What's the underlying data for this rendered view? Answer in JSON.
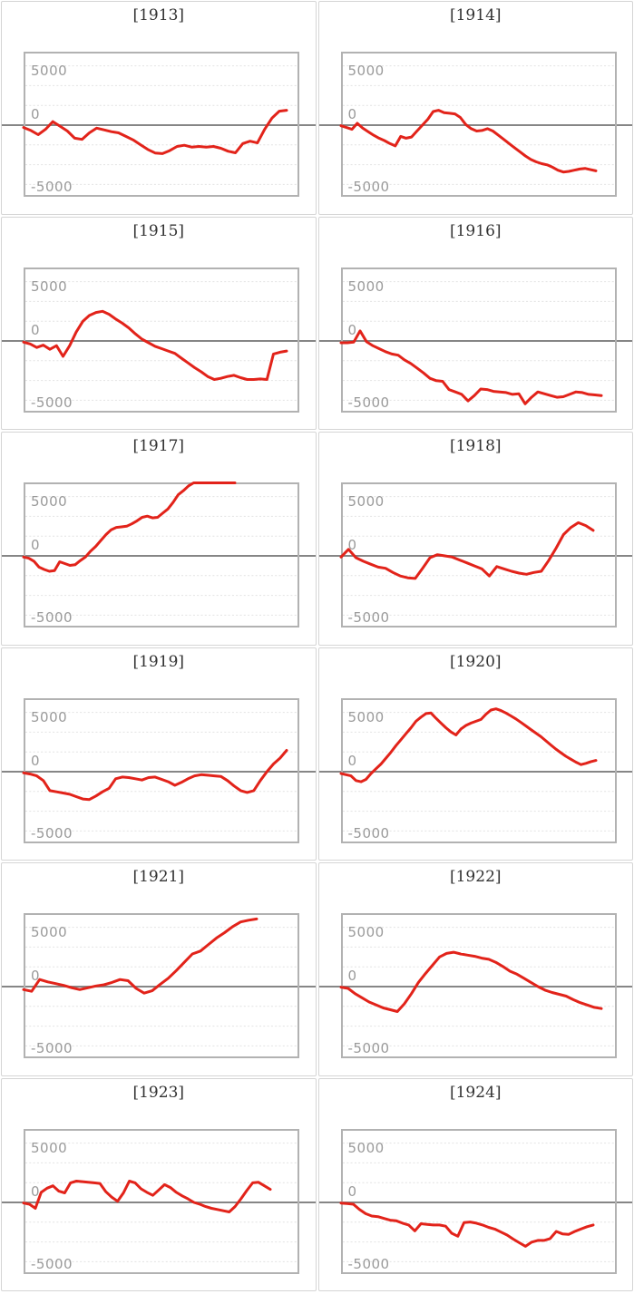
{
  "figure": {
    "description": "Small-multiple line charts per year, 2 columns x 6 rows",
    "background": "#ffffff"
  },
  "style": {
    "line_color": "#e2231a",
    "grid_color": "#e2e2e2",
    "zero_line_color": "#868686",
    "frame_color": "#b2b2b2",
    "tick_label_color": "#9a9a9a",
    "title_color": "#333333",
    "cell_border_color": "#d5d5d5"
  },
  "axis": {
    "tick_labels": [
      "5000",
      "0",
      "-5000"
    ],
    "tick_values": [
      5000,
      0,
      -5000
    ],
    "ylim": [
      -5900,
      6040
    ],
    "grid": "dashed-minor-thirds"
  },
  "chart_data": [
    {
      "type": "line",
      "title": "[1913]",
      "year": 1913,
      "x_end_frac": 0.96,
      "values": [
        -200,
        -450,
        -800,
        -350,
        300,
        -100,
        -500,
        -1100,
        -1200,
        -650,
        -250,
        -400,
        -550,
        -650,
        -950,
        -1250,
        -1650,
        -2050,
        -2350,
        -2400,
        -2150,
        -1800,
        -1700,
        -1850,
        -1800,
        -1850,
        -1800,
        -1950,
        -2200,
        -2330,
        -1550,
        -1350,
        -1500,
        -350,
        600,
        1180,
        1250
      ]
    },
    {
      "type": "line",
      "title": "[1914]",
      "year": 1914,
      "x_end_frac": 0.93,
      "values": [
        -50,
        -200,
        -350,
        150,
        -250,
        -550,
        -850,
        -1100,
        -1300,
        -1550,
        -1750,
        -950,
        -1100,
        -1000,
        -500,
        0,
        500,
        1150,
        1250,
        1050,
        1000,
        950,
        650,
        50,
        -300,
        -500,
        -450,
        -300,
        -500,
        -850,
        -1200,
        -1550,
        -1900,
        -2250,
        -2600,
        -2900,
        -3100,
        -3250,
        -3350,
        -3550,
        -3800,
        -3950,
        -3900,
        -3800,
        -3700,
        -3650,
        -3750,
        -3850
      ]
    },
    {
      "type": "line",
      "title": "[1915]",
      "year": 1915,
      "x_end_frac": 0.96,
      "values": [
        -100,
        -250,
        -550,
        -350,
        -700,
        -400,
        -1300,
        -400,
        750,
        1650,
        2150,
        2400,
        2500,
        2250,
        1850,
        1500,
        1100,
        600,
        150,
        -150,
        -450,
        -650,
        -850,
        -1050,
        -1450,
        -1850,
        -2250,
        -2600,
        -3000,
        -3250,
        -3150,
        -3000,
        -2900,
        -3100,
        -3250,
        -3250,
        -3200,
        -3250,
        -1100,
        -950,
        -850
      ]
    },
    {
      "type": "line",
      "title": "[1916]",
      "year": 1916,
      "x_end_frac": 0.95,
      "values": [
        -150,
        -150,
        -100,
        850,
        -50,
        -400,
        -650,
        -900,
        -1100,
        -1200,
        -1600,
        -1900,
        -2300,
        -2700,
        -3150,
        -3350,
        -3400,
        -4100,
        -4300,
        -4500,
        -5050,
        -4600,
        -4050,
        -4100,
        -4250,
        -4300,
        -4350,
        -4500,
        -4450,
        -5300,
        -4750,
        -4300,
        -4450,
        -4600,
        -4750,
        -4700,
        -4500,
        -4300,
        -4350,
        -4500,
        -4550,
        -4600
      ]
    },
    {
      "type": "line",
      "title": "[1917]",
      "year": 1917,
      "x_end_frac": 0.77,
      "clipped_at_top": true,
      "values": [
        -100,
        -200,
        -450,
        -950,
        -1150,
        -1300,
        -1250,
        -500,
        -650,
        -800,
        -750,
        -400,
        -100,
        400,
        800,
        1300,
        1800,
        2200,
        2400,
        2450,
        2500,
        2700,
        2950,
        3250,
        3350,
        3200,
        3250,
        3600,
        3950,
        4500,
        5150,
        5500,
        5900,
        6300,
        6500,
        6500,
        6500,
        6500,
        6500,
        6500,
        6500,
        6500
      ]
    },
    {
      "type": "line",
      "title": "[1918]",
      "year": 1918,
      "x_end_frac": 0.92,
      "values": [
        -100,
        550,
        -150,
        -450,
        -700,
        -950,
        -1050,
        -1400,
        -1700,
        -1850,
        -1900,
        -1050,
        -150,
        100,
        0,
        -100,
        -350,
        -600,
        -850,
        -1100,
        -1700,
        -900,
        -1100,
        -1300,
        -1450,
        -1550,
        -1400,
        -1300,
        -400,
        650,
        1800,
        2400,
        2800,
        2550,
        2150
      ]
    },
    {
      "type": "line",
      "title": "[1919]",
      "year": 1919,
      "x_end_frac": 0.96,
      "values": [
        -100,
        -200,
        -350,
        -750,
        -1600,
        -1700,
        -1800,
        -1900,
        -2100,
        -2300,
        -2350,
        -2050,
        -1700,
        -1400,
        -600,
        -450,
        -500,
        -600,
        -700,
        -500,
        -450,
        -650,
        -850,
        -1150,
        -900,
        -600,
        -350,
        -250,
        -300,
        -350,
        -400,
        -750,
        -1200,
        -1600,
        -1750,
        -1600,
        -750,
        0,
        650,
        1150,
        1800
      ]
    },
    {
      "type": "line",
      "title": "[1920]",
      "year": 1920,
      "x_end_frac": 0.93,
      "values": [
        -150,
        -250,
        -350,
        -750,
        -850,
        -650,
        -150,
        250,
        650,
        1150,
        1650,
        2200,
        2700,
        3200,
        3700,
        4250,
        4600,
        4900,
        4950,
        4500,
        4100,
        3700,
        3350,
        3100,
        3600,
        3900,
        4100,
        4250,
        4400,
        4850,
        5200,
        5300,
        5150,
        4950,
        4700,
        4450,
        4150,
        3850,
        3550,
        3250,
        2950,
        2600,
        2250,
        1900,
        1600,
        1300,
        1050,
        800,
        600,
        700,
        850,
        950
      ]
    },
    {
      "type": "line",
      "title": "[1921]",
      "year": 1921,
      "x_end_frac": 0.85,
      "values": [
        -250,
        -400,
        600,
        400,
        250,
        100,
        -100,
        -250,
        -100,
        50,
        150,
        350,
        600,
        500,
        -150,
        -550,
        -350,
        200,
        700,
        1350,
        2050,
        2750,
        3000,
        3550,
        4100,
        4550,
        5050,
        5450,
        5600,
        5700
      ]
    },
    {
      "type": "line",
      "title": "[1922]",
      "year": 1922,
      "x_end_frac": 0.95,
      "values": [
        -50,
        -150,
        -600,
        -950,
        -1300,
        -1550,
        -1800,
        -1950,
        -2100,
        -1450,
        -600,
        350,
        1100,
        1800,
        2500,
        2800,
        2900,
        2750,
        2650,
        2550,
        2400,
        2300,
        2050,
        1700,
        1300,
        1050,
        700,
        350,
        0,
        -300,
        -500,
        -650,
        -800,
        -1100,
        -1350,
        -1550,
        -1750,
        -1850
      ]
    },
    {
      "type": "line",
      "title": "[1923]",
      "year": 1923,
      "x_end_frac": 0.9,
      "values": [
        -50,
        -150,
        -500,
        850,
        1200,
        1400,
        950,
        800,
        1650,
        1800,
        1750,
        1700,
        1650,
        1600,
        900,
        450,
        100,
        800,
        1800,
        1650,
        1150,
        850,
        600,
        1050,
        1500,
        1250,
        850,
        550,
        300,
        0,
        -150,
        -350,
        -500,
        -600,
        -700,
        -800,
        -350,
        300,
        1000,
        1650,
        1700,
        1400,
        1100
      ]
    },
    {
      "type": "line",
      "title": "[1924]",
      "year": 1924,
      "x_end_frac": 0.92,
      "values": [
        -50,
        -100,
        -150,
        -600,
        -950,
        -1150,
        -1200,
        -1350,
        -1500,
        -1550,
        -1750,
        -1900,
        -2400,
        -1800,
        -1850,
        -1900,
        -1900,
        -2000,
        -2600,
        -2850,
        -1700,
        -1650,
        -1750,
        -1900,
        -2100,
        -2250,
        -2500,
        -2750,
        -3100,
        -3400,
        -3700,
        -3350,
        -3200,
        -3200,
        -3050,
        -2450,
        -2650,
        -2700,
        -2450,
        -2250,
        -2050,
        -1900
      ]
    }
  ]
}
